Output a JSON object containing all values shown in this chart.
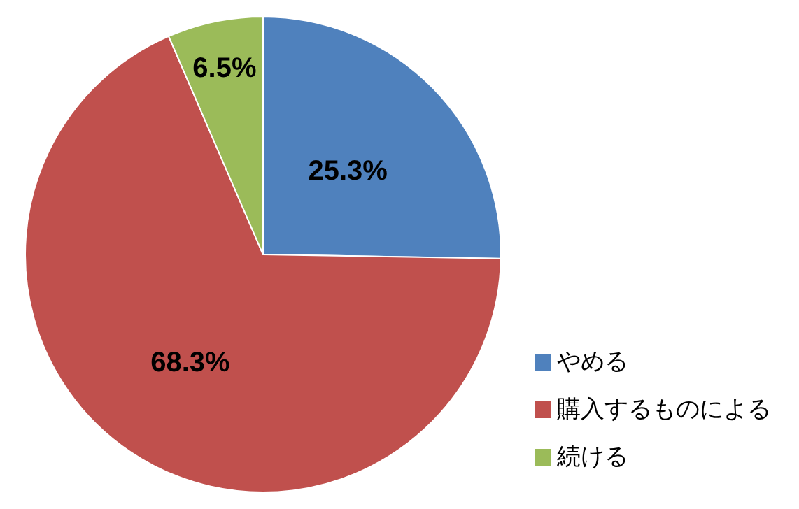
{
  "chart_data": {
    "type": "pie",
    "categories": [
      "やめる",
      "購入するものによる",
      "続ける"
    ],
    "values": [
      25.3,
      68.3,
      6.5
    ],
    "colors": [
      "#4f81bd",
      "#c0504d",
      "#9bbb59"
    ],
    "value_labels": [
      "25.3%",
      "68.3%",
      "6.5%"
    ],
    "legend": "bottom right"
  }
}
